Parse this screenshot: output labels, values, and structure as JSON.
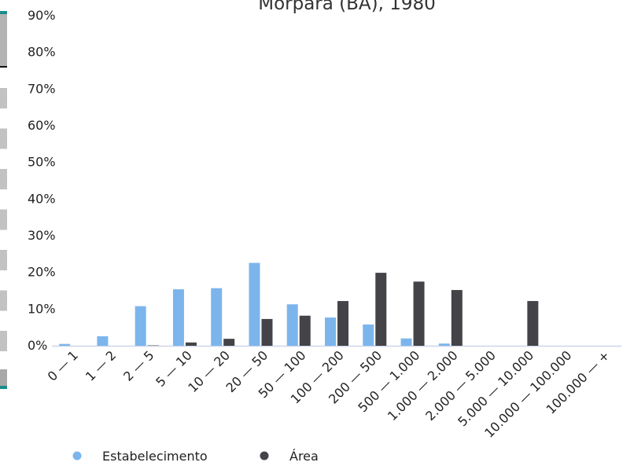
{
  "chart_data": {
    "type": "bar",
    "title": "Morpará (BA), 1980",
    "xlabel": "",
    "ylabel": "",
    "ylim": [
      0,
      90
    ],
    "yticks": [
      "0%",
      "10%",
      "20%",
      "30%",
      "40%",
      "50%",
      "60%",
      "70%",
      "80%",
      "90%"
    ],
    "categories": [
      "0 — 1",
      "1 — 2",
      "2 — 5",
      "5 — 10",
      "10 — 20",
      "20 — 50",
      "50 — 100",
      "100 — 200",
      "200 — 500",
      "500 — 1.000",
      "1.000 — 2.000",
      "2.000 — 5.000",
      "5.000 — 10.000",
      "10.000 — 100.000",
      "100.000 — +"
    ],
    "series": [
      {
        "name": "Estabelecimento",
        "color": "#7cb5ec",
        "values": [
          0.5,
          2.6,
          10.8,
          15.4,
          15.7,
          22.6,
          11.3,
          7.7,
          5.8,
          2.0,
          0.6,
          0,
          0,
          0,
          0
        ]
      },
      {
        "name": "Área",
        "color": "#434348",
        "values": [
          0,
          0,
          0.1,
          0.9,
          1.9,
          7.3,
          8.2,
          12.2,
          19.9,
          17.5,
          15.2,
          0,
          12.2,
          0,
          0
        ]
      }
    ],
    "legend_position": "bottom-left",
    "grid": false
  }
}
